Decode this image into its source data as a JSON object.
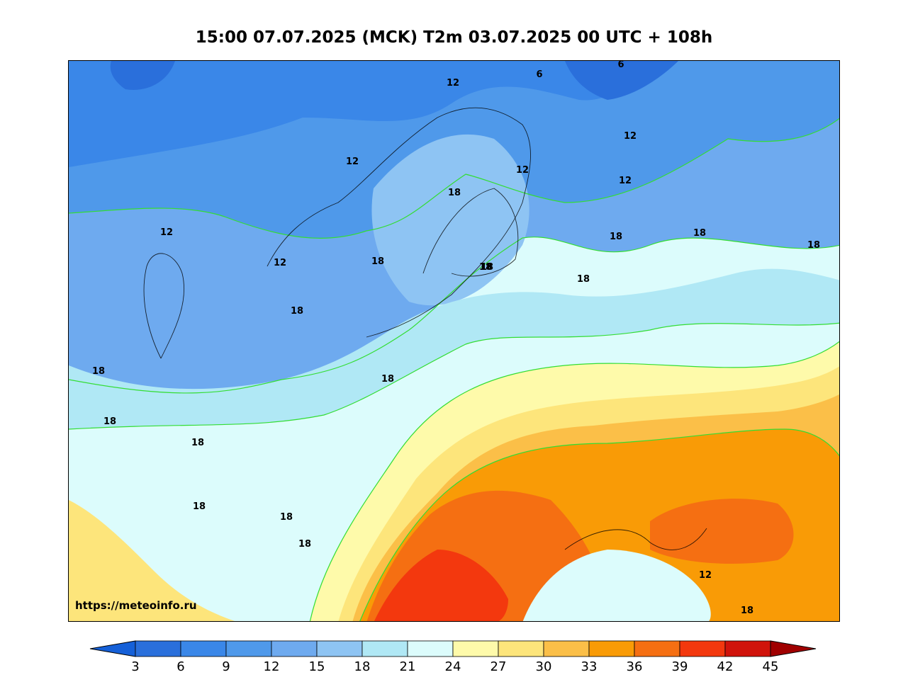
{
  "header": {
    "title": "15:00 07.07.2025 (MCK) T2m 03.07.2025 00 UTC + 108h"
  },
  "map": {
    "credit": "https://meteoinfo.ru",
    "contour_labels": [
      "6",
      "6",
      "12",
      "12",
      "12",
      "12",
      "12",
      "12",
      "12",
      "18",
      "18",
      "18",
      "18",
      "18",
      "18",
      "18",
      "18",
      "18",
      "18",
      "18",
      "18",
      "18",
      "18",
      "12",
      "18",
      "18",
      "18"
    ]
  },
  "colorbar": {
    "ticks": [
      "3",
      "6",
      "9",
      "12",
      "15",
      "18",
      "21",
      "24",
      "27",
      "30",
      "33",
      "36",
      "39",
      "42",
      "45"
    ],
    "colors": [
      "#2a6fdb",
      "#3a87e8",
      "#4f99ea",
      "#6eaaef",
      "#8ec4f3",
      "#b0e8f5",
      "#dcfcfc",
      "#fefaaa",
      "#fde57b",
      "#fbbf48",
      "#f99b06",
      "#f56f12",
      "#f3380e",
      "#d0130b",
      "#b10000"
    ],
    "under_color": "#1560d8",
    "over_color": "#a00000"
  }
}
